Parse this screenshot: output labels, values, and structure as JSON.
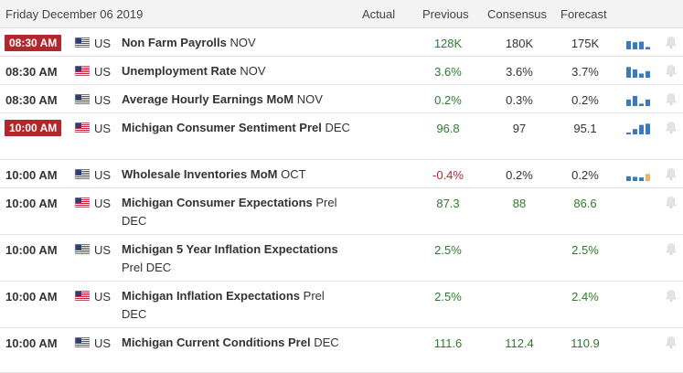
{
  "header": {
    "date": "Friday December 06 2019",
    "actual": "Actual",
    "previous": "Previous",
    "consensus": "Consensus",
    "forecast": "Forecast"
  },
  "colors": {
    "accent_red": "#b3272c",
    "green": "#2d7b2b",
    "bar_blue": "#3a7bbf",
    "bar_gold": "#e2b866"
  },
  "rows": [
    {
      "time": "08:30 AM",
      "highlight": true,
      "country": "US",
      "name": "Non Farm Payrolls",
      "period": "NOV",
      "actual": "",
      "previous": "128K",
      "consensus": "180K",
      "forecast": "175K",
      "prev_color": "green",
      "cons_color": "black",
      "fore_color": "black",
      "bars": [
        0.7,
        0.6,
        0.65,
        0.2
      ],
      "bar_colors": [
        "blue",
        "blue",
        "blue",
        "blue"
      ]
    },
    {
      "time": "08:30 AM",
      "highlight": false,
      "country": "US",
      "name": "Unemployment Rate",
      "period": "NOV",
      "actual": "",
      "previous": "3.6%",
      "consensus": "3.6%",
      "forecast": "3.7%",
      "prev_color": "green",
      "cons_color": "black",
      "fore_color": "black",
      "bars": [
        0.9,
        0.7,
        0.35,
        0.55
      ],
      "bar_colors": [
        "blue",
        "blue",
        "blue",
        "blue"
      ]
    },
    {
      "time": "08:30 AM",
      "highlight": false,
      "country": "US",
      "name": "Average Hourly Earnings MoM",
      "period": "NOV",
      "actual": "",
      "previous": "0.2%",
      "consensus": "0.3%",
      "forecast": "0.2%",
      "prev_color": "green",
      "cons_color": "black",
      "fore_color": "black",
      "bars": [
        0.55,
        0.85,
        0.2,
        0.55
      ],
      "bar_colors": [
        "blue",
        "blue",
        "blue",
        "blue"
      ]
    },
    {
      "time": "10:00 AM",
      "highlight": true,
      "country": "US",
      "name": "Michigan Consumer Sentiment Prel",
      "period": "DEC",
      "actual": "",
      "previous": "96.8",
      "consensus": "97",
      "forecast": "95.1",
      "prev_color": "green",
      "cons_color": "black",
      "fore_color": "black",
      "bars": [
        0.15,
        0.45,
        0.8,
        0.9
      ],
      "bar_colors": [
        "blue",
        "blue",
        "blue",
        "blue"
      ]
    },
    {
      "time": "10:00 AM",
      "highlight": false,
      "country": "US",
      "name": "Wholesale Inventories MoM",
      "period": "OCT",
      "actual": "",
      "previous": "-0.4%",
      "consensus": "0.2%",
      "forecast": "0.2%",
      "prev_color": "neg",
      "cons_color": "black",
      "fore_color": "black",
      "bars": [
        0.4,
        0.35,
        0.3,
        0.6
      ],
      "bar_colors": [
        "blue",
        "blue",
        "blue",
        "gold"
      ]
    },
    {
      "time": "10:00 AM",
      "highlight": false,
      "country": "US",
      "name": "Michigan Consumer Expectations",
      "period": "Prel DEC",
      "actual": "",
      "previous": "87.3",
      "consensus": "88",
      "forecast": "86.6",
      "prev_color": "green",
      "cons_color": "green",
      "fore_color": "green",
      "bars": [],
      "bar_colors": []
    },
    {
      "time": "10:00 AM",
      "highlight": false,
      "country": "US",
      "name": "Michigan 5 Year Inflation Expectations",
      "period": "Prel DEC",
      "actual": "",
      "previous": "2.5%",
      "consensus": "",
      "forecast": "2.5%",
      "prev_color": "green",
      "cons_color": "black",
      "fore_color": "green",
      "bars": [],
      "bar_colors": []
    },
    {
      "time": "10:00 AM",
      "highlight": false,
      "country": "US",
      "name": "Michigan Inflation Expectations",
      "period": "Prel DEC",
      "actual": "",
      "previous": "2.5%",
      "consensus": "",
      "forecast": "2.4%",
      "prev_color": "green",
      "cons_color": "black",
      "fore_color": "green",
      "bars": [],
      "bar_colors": []
    },
    {
      "time": "10:00 AM",
      "highlight": false,
      "country": "US",
      "name": "Michigan Current Conditions Prel",
      "period": "DEC",
      "actual": "",
      "previous": "111.6",
      "consensus": "112.4",
      "forecast": "110.9",
      "prev_color": "green",
      "cons_color": "green",
      "fore_color": "green",
      "bars": [],
      "bar_colors": []
    }
  ]
}
